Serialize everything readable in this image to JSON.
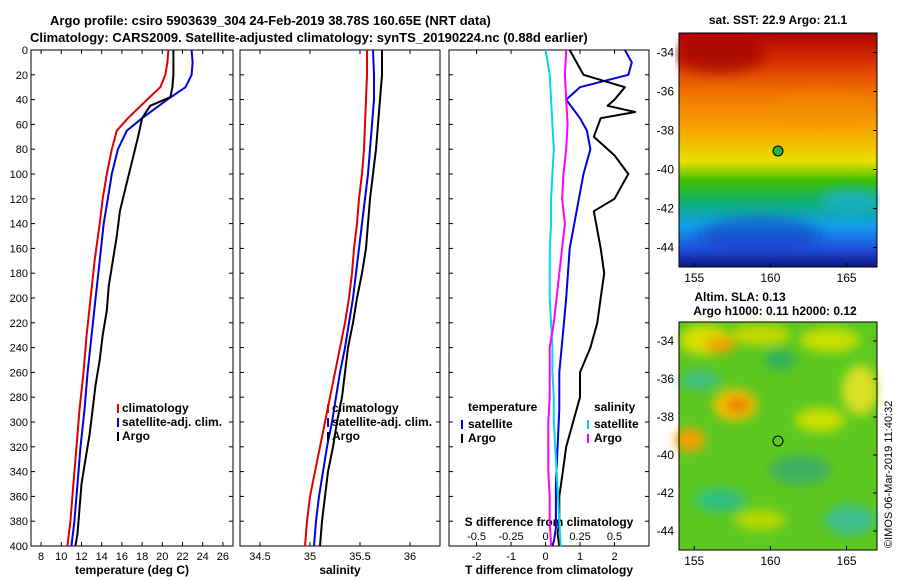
{
  "header": {
    "line1": "Argo profile: csiro 5903639_304 24-Feb-2019 38.78S 160.65E (NRT data)",
    "line2": "Climatology: CARS2009. Satellite-adjusted climatology: synTS_20190224.nc (0.88d earlier)"
  },
  "colors": {
    "climatology": "#e00000",
    "satellite": "#0000e0",
    "argo": "#000000",
    "salinity_clim": "#00d8e8",
    "salinity_diff": "#ff00ff"
  },
  "chart_data": [
    {
      "type": "line",
      "id": "temperature",
      "xlabel": "temperature (deg C)",
      "ylabel": "",
      "xlim": [
        7,
        27
      ],
      "ylim": [
        400,
        0
      ],
      "xticks": [
        8,
        10,
        12,
        14,
        16,
        18,
        20,
        22,
        24,
        26
      ],
      "yticks": [
        0,
        20,
        40,
        60,
        80,
        100,
        120,
        140,
        160,
        180,
        200,
        220,
        240,
        260,
        280,
        300,
        320,
        340,
        360,
        380,
        400
      ],
      "legend": [
        "climatology",
        "satellite-adj. clim.",
        "Argo"
      ],
      "series": [
        {
          "name": "climatology",
          "color": "#e00000",
          "x": [
            20.6,
            20.5,
            20.3,
            19.8,
            18.5,
            16.6,
            15.5,
            15.0,
            14.5,
            14.1,
            13.8,
            13.3,
            12.9,
            12.5,
            12.2,
            11.8,
            11.5,
            11.2,
            10.9,
            10.6
          ],
          "depth": [
            0,
            10,
            20,
            30,
            40,
            55,
            65,
            80,
            100,
            120,
            140,
            170,
            200,
            230,
            260,
            290,
            320,
            350,
            380,
            400
          ]
        },
        {
          "name": "satellite-adj. clim.",
          "color": "#0000e0",
          "x": [
            22.9,
            23.0,
            22.9,
            22.3,
            20.5,
            18.0,
            16.5,
            15.6,
            15.0,
            14.6,
            14.2,
            13.8,
            13.4,
            13.0,
            12.6,
            12.3,
            11.9,
            11.6,
            11.3,
            11.0
          ],
          "depth": [
            0,
            10,
            20,
            30,
            40,
            55,
            65,
            80,
            100,
            120,
            140,
            170,
            200,
            230,
            260,
            290,
            320,
            350,
            380,
            400
          ]
        },
        {
          "name": "Argo",
          "color": "#000000",
          "x": [
            21.1,
            21.1,
            21.1,
            21.0,
            20.8,
            18.8,
            18.0,
            17.6,
            17.0,
            16.4,
            15.8,
            15.5,
            15.1,
            14.7,
            14.5,
            14.1,
            13.8,
            13.4,
            13.1,
            12.8,
            12.4,
            12.0,
            11.8,
            11.6,
            11.4
          ],
          "depth": [
            0,
            10,
            20,
            30,
            38,
            45,
            55,
            70,
            90,
            110,
            130,
            150,
            170,
            190,
            210,
            230,
            250,
            270,
            290,
            310,
            330,
            350,
            370,
            390,
            400
          ]
        }
      ]
    },
    {
      "type": "line",
      "id": "salinity",
      "xlabel": "salinity",
      "ylabel": "",
      "xlim": [
        34.3,
        36.3
      ],
      "ylim": [
        400,
        0
      ],
      "xticks": [
        34.5,
        35,
        35.5,
        36
      ],
      "legend": [
        "climatology",
        "satellite-adj. clim.",
        "Argo"
      ],
      "series": [
        {
          "name": "climatology",
          "color": "#e00000",
          "x": [
            35.57,
            35.57,
            35.56,
            35.55,
            35.54,
            35.52,
            35.49,
            35.47,
            35.44,
            35.42,
            35.39,
            35.35,
            35.3,
            35.25,
            35.2,
            35.15,
            35.1,
            35.05,
            35.0,
            34.97,
            34.95
          ],
          "depth": [
            0,
            20,
            40,
            60,
            80,
            100,
            120,
            140,
            160,
            180,
            200,
            220,
            240,
            260,
            280,
            300,
            320,
            340,
            360,
            380,
            400
          ]
        },
        {
          "name": "satellite-adj. clim.",
          "color": "#0000e0",
          "x": [
            35.63,
            35.64,
            35.64,
            35.62,
            35.6,
            35.58,
            35.55,
            35.52,
            35.49,
            35.46,
            35.43,
            35.39,
            35.35,
            35.3,
            35.26,
            35.22,
            35.17,
            35.13,
            35.09,
            35.06,
            35.04
          ],
          "depth": [
            0,
            20,
            40,
            60,
            80,
            100,
            120,
            140,
            160,
            180,
            200,
            220,
            240,
            260,
            280,
            300,
            320,
            340,
            360,
            380,
            400
          ]
        },
        {
          "name": "Argo",
          "color": "#000000",
          "x": [
            35.72,
            35.72,
            35.7,
            35.68,
            35.66,
            35.63,
            35.6,
            35.58,
            35.56,
            35.52,
            35.47,
            35.43,
            35.38,
            35.35,
            35.32,
            35.27,
            35.23,
            35.18,
            35.15,
            35.12,
            35.1
          ],
          "depth": [
            0,
            20,
            40,
            60,
            80,
            100,
            120,
            140,
            160,
            180,
            200,
            220,
            240,
            260,
            280,
            300,
            320,
            340,
            360,
            380,
            400
          ]
        }
      ]
    },
    {
      "type": "line",
      "id": "differences",
      "xlabel": "T difference from climatology",
      "x2label": "S difference from climatology",
      "xlim": [
        -2.8,
        3.0
      ],
      "x2lim": [
        -0.7,
        0.75
      ],
      "ylim": [
        400,
        0
      ],
      "xticks": [
        -2,
        -1,
        0,
        1,
        2
      ],
      "x2ticks": [
        -0.5,
        -0.25,
        0,
        0.25,
        0.5
      ],
      "legend": {
        "temperature": [
          "satellite",
          "Argo"
        ],
        "salinity": [
          "satellite",
          "Argo"
        ]
      },
      "legend_titles": [
        "temperature",
        "salinity"
      ],
      "series": [
        {
          "name": "T satellite",
          "color": "#0000e0",
          "x": [
            2.3,
            2.5,
            2.4,
            1.0,
            0.6,
            1.0,
            1.2,
            1.3,
            1.1,
            0.9,
            0.7,
            0.6,
            0.5,
            0.4,
            0.4,
            0.35,
            0.3,
            0.3,
            0.3,
            0.25,
            0.2
          ],
          "depth": [
            0,
            10,
            20,
            30,
            40,
            55,
            65,
            80,
            100,
            130,
            160,
            200,
            230,
            260,
            290,
            320,
            350,
            370,
            385,
            395,
            400
          ]
        },
        {
          "name": "T Argo",
          "color": "#000000",
          "x": [
            0.7,
            1.1,
            2.3,
            2.0,
            1.8,
            2.6,
            1.6,
            1.4,
            2.0,
            2.4,
            2.0,
            1.4,
            1.6,
            1.7,
            1.6,
            1.5,
            1.3,
            1.0,
            1.0,
            0.8,
            0.6,
            0.5,
            0.4,
            0.4,
            0.35,
            0.4
          ],
          "depth": [
            0,
            20,
            30,
            40,
            45,
            50,
            55,
            70,
            85,
            100,
            120,
            130,
            160,
            180,
            200,
            220,
            240,
            260,
            280,
            300,
            320,
            340,
            360,
            380,
            390,
            400
          ]
        },
        {
          "name": "S satellite",
          "color": "#00d8e8",
          "x": [
            0.0,
            0.03,
            0.04,
            0.05,
            0.06,
            0.05,
            0.04,
            0.04,
            0.03,
            0.03,
            0.03,
            0.04,
            0.05,
            0.05,
            0.06,
            0.06,
            0.07,
            0.08,
            0.09,
            0.1,
            0.11
          ],
          "depth": [
            0,
            20,
            40,
            60,
            80,
            100,
            120,
            140,
            160,
            180,
            200,
            220,
            240,
            260,
            280,
            300,
            320,
            340,
            360,
            380,
            400
          ]
        },
        {
          "name": "S Argo",
          "color": "#ff00ff",
          "x": [
            0.15,
            0.14,
            0.15,
            0.16,
            0.15,
            0.13,
            0.12,
            0.14,
            0.12,
            0.1,
            0.08,
            0.06,
            0.03,
            0.03,
            0.03,
            0.02,
            0.02,
            0.02,
            0.03,
            0.03,
            0.04
          ],
          "depth": [
            0,
            20,
            40,
            60,
            80,
            100,
            120,
            140,
            160,
            180,
            200,
            220,
            240,
            260,
            280,
            300,
            320,
            340,
            360,
            380,
            400
          ]
        }
      ]
    }
  ],
  "maps": [
    {
      "id": "sst",
      "title": "sat. SST: 22.9 Argo: 21.1",
      "xticks": [
        "155",
        "160",
        "165"
      ],
      "yticks": [
        "-34",
        "-36",
        "-38",
        "-40",
        "-42",
        "-44"
      ],
      "xlim": [
        154,
        167
      ],
      "ylim": [
        -45,
        -33
      ],
      "profile_location": [
        160.65,
        -38.78
      ]
    },
    {
      "id": "sla",
      "title_line1": "Altim. SLA: 0.13",
      "title_line2": "Argo h1000: 0.11 h2000: 0.12",
      "xticks": [
        "155",
        "160",
        "165"
      ],
      "yticks": [
        "-34",
        "-36",
        "-38",
        "-40",
        "-42",
        "-44"
      ],
      "xlim": [
        154,
        167
      ],
      "ylim": [
        -45,
        -33
      ],
      "profile_location": [
        160.65,
        -38.78
      ]
    }
  ],
  "watermark": "©IMOS 06-Mar-2019 11:40:32"
}
